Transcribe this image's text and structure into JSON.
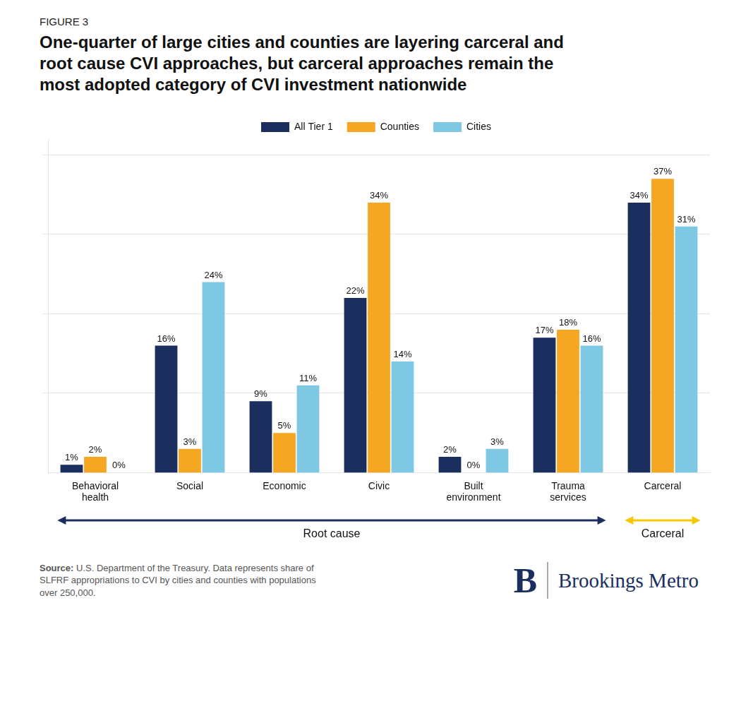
{
  "chart_data": {
    "type": "bar",
    "figure_label": "FIGURE 3",
    "title": "One-quarter of large cities and counties are layering carceral and\nroot cause CVI approaches, but carceral approaches remain the\nmost adopted category of CVI investment nationwide",
    "categories": [
      "Behavioral\nhealth",
      "Social",
      "Economic",
      "Civic",
      "Built\nenvironment",
      "Trauma\nservices",
      "Carceral"
    ],
    "series": [
      {
        "name": "All Tier 1",
        "color": "#1b2f5e",
        "values": [
          1,
          16,
          9,
          22,
          2,
          17,
          34
        ],
        "value_labels": [
          "1%",
          "16%",
          "9%",
          "22%",
          "2%",
          "17%",
          "34%"
        ]
      },
      {
        "name": "Counties",
        "color": "#f5a623",
        "values": [
          2,
          3,
          5,
          34,
          0,
          18,
          37
        ],
        "value_labels": [
          "2%",
          "3%",
          "5%",
          "34%",
          "0%",
          "18%",
          "37%"
        ]
      },
      {
        "name": "Cities",
        "color": "#7ec8e3",
        "values": [
          0,
          24,
          11,
          14,
          3,
          16,
          31
        ],
        "value_labels": [
          "0%",
          "24%",
          "11%",
          "14%",
          "3%",
          "16%",
          "31%"
        ]
      }
    ],
    "ylim": [
      0,
      42
    ],
    "yticks": [
      10,
      20,
      30,
      40
    ],
    "grid": true,
    "legend": "top",
    "data_labels": true,
    "tick_labels": "x",
    "annotations": [
      {
        "text": "Root cause",
        "color": "#1b2f5e",
        "from": "Behavioral\nhealth",
        "to": "Trauma\nservices"
      },
      {
        "text": "Carceral",
        "color": "#f5c800",
        "from": "Carceral",
        "to": "Carceral"
      }
    ],
    "source_label": "Source:",
    "source": " U.S. Department of the Treasury. Data represents share of\nSLFRF appropriations to CVI by cities and counties with populations\nover 250,000.",
    "branding": [
      "B",
      "Brookings Metro"
    ]
  }
}
